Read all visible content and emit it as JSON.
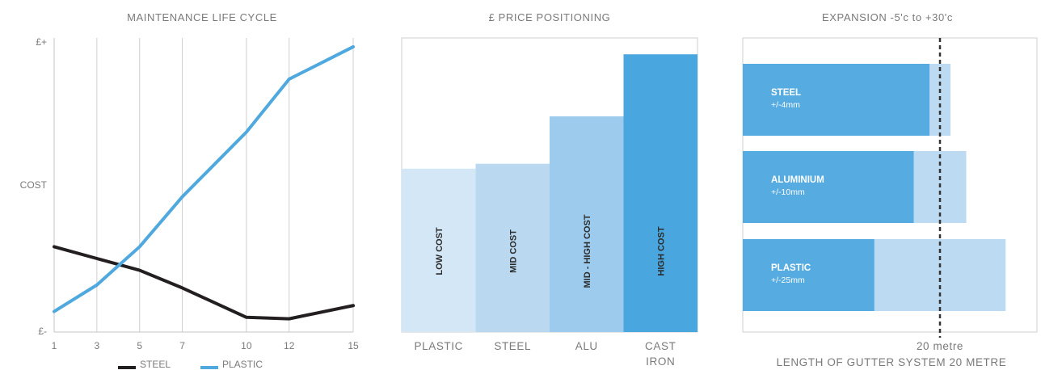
{
  "chart_data": [
    {
      "type": "line",
      "title": "MAINTENANCE LIFE CYCLE",
      "ylabel": "COST",
      "y_top_label": "£+",
      "y_bottom_label": "£-",
      "x": [
        1,
        3,
        5,
        7,
        10,
        12,
        15
      ],
      "x_tick_labels": [
        "1",
        "3",
        "5",
        "7",
        "10",
        "12",
        "15"
      ],
      "ylim": [
        0,
        100
      ],
      "grid": "vertical",
      "legend_position": "bottom",
      "colors": {
        "STEEL": "#231f20",
        "PLASTIC": "#4fa8de"
      },
      "series": [
        {
          "name": "STEEL",
          "values": [
            29,
            25,
            21,
            15,
            5,
            4.5,
            9
          ]
        },
        {
          "name": "PLASTIC",
          "values": [
            7,
            16,
            29,
            46,
            68,
            86,
            97
          ]
        }
      ]
    },
    {
      "type": "bar",
      "title": "£ PRICE POSITIONING",
      "categories": [
        "PLASTIC",
        "STEEL",
        "ALU",
        "CAST IRON"
      ],
      "category_lines": [
        [
          "PLASTIC"
        ],
        [
          "STEEL"
        ],
        [
          "ALU"
        ],
        [
          "CAST",
          "IRON"
        ]
      ],
      "values": [
        1.0,
        1.03,
        1.32,
        1.7
      ],
      "bar_labels": [
        "LOW COST",
        "MID COST",
        "MID - HIGH COST",
        "HIGH COST"
      ],
      "bar_colors": [
        "#d3e7f6",
        "#bad9f1",
        "#9ccbed",
        "#4aa6df"
      ],
      "ylim": [
        0,
        1.8
      ]
    },
    {
      "type": "bar",
      "orientation": "horizontal",
      "title": "EXPANSION -5'c to +30'c",
      "xlabel": "LENGTH OF GUTTER SYSTEM 20 METRE",
      "reference_label": "20 metre",
      "categories": [
        "STEEL",
        "ALUMINIUM",
        "PLASTIC"
      ],
      "tolerances": [
        "+/-4mm",
        "+/-10mm",
        "+/-25mm"
      ],
      "expansion_mm": [
        4,
        10,
        25
      ],
      "colors": {
        "solid": "#56abe1",
        "range": "#bcdaf1",
        "reference": "#333333"
      }
    }
  ]
}
